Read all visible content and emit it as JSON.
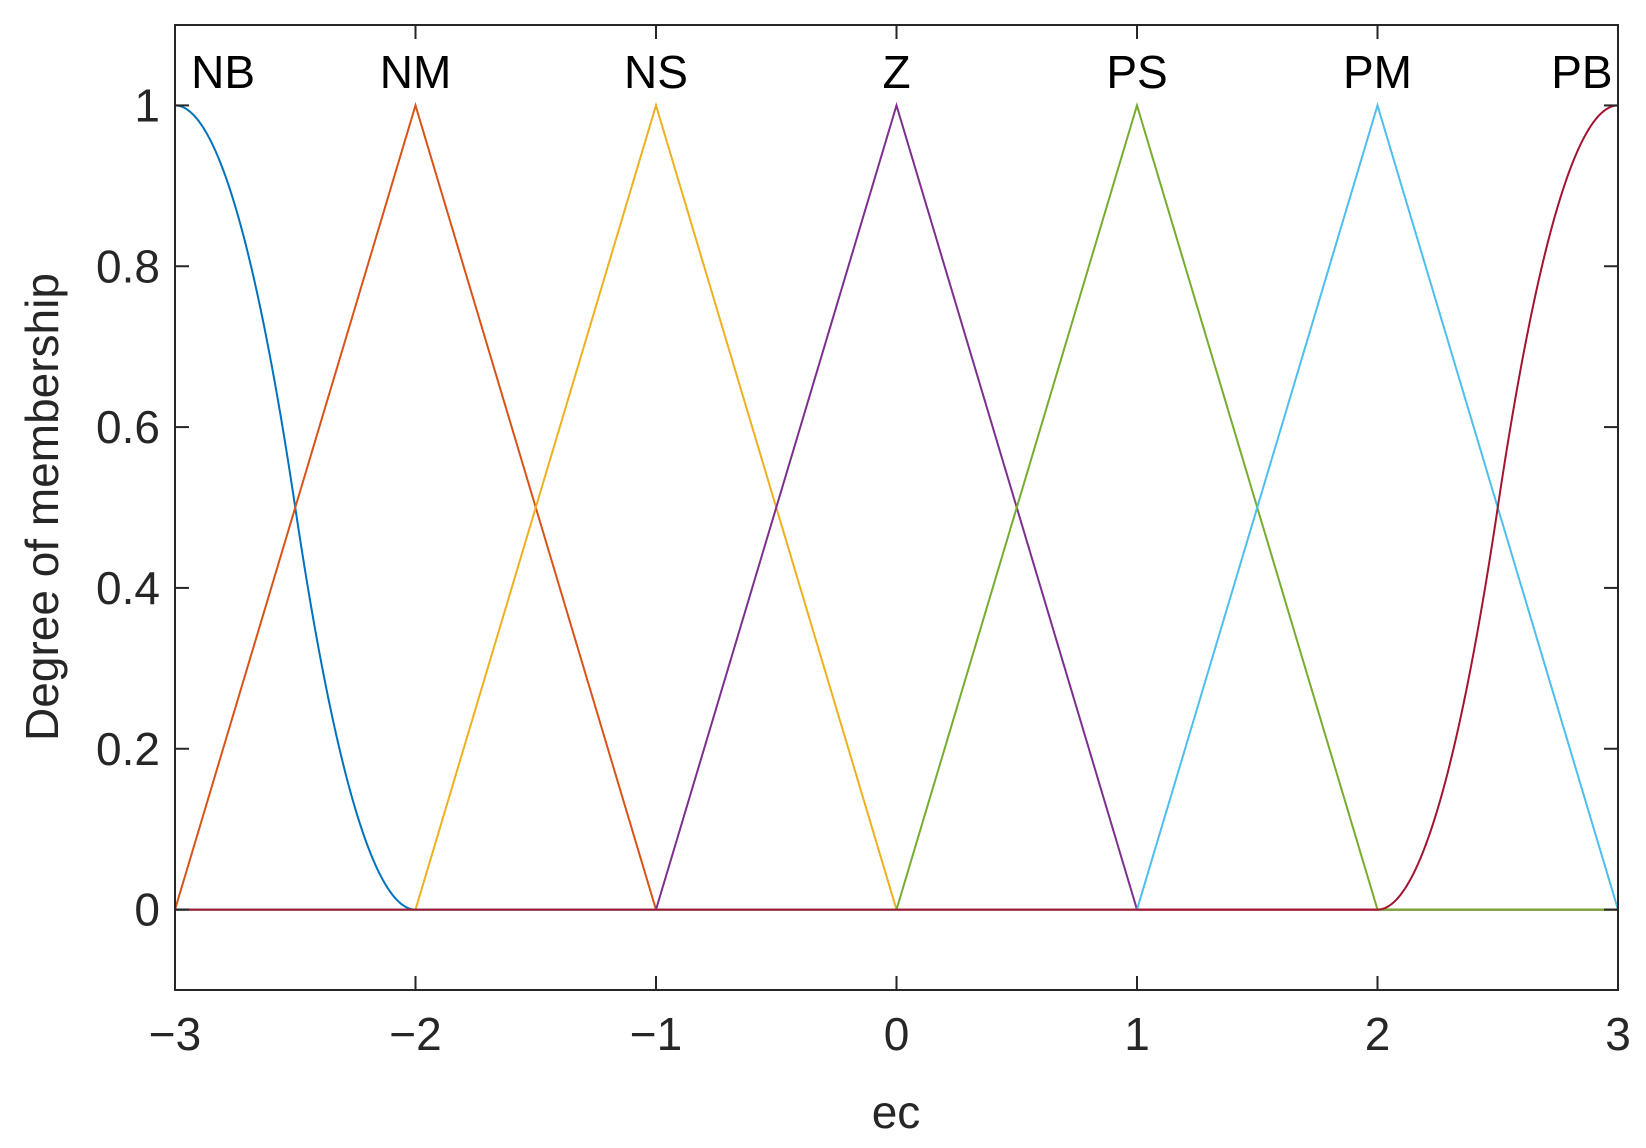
{
  "chart_data": {
    "type": "line",
    "title": "",
    "xlabel": "ec",
    "ylabel": "Degree of membership",
    "xlim": [
      -3,
      3
    ],
    "ylim": [
      -0.1,
      1.1
    ],
    "xticks": [
      -3,
      -2,
      -1,
      0,
      1,
      2,
      3
    ],
    "xtick_labels": [
      "−3",
      "−2",
      "−1",
      "0",
      "1",
      "2",
      "3"
    ],
    "yticks": [
      0,
      0.2,
      0.4,
      0.6,
      0.8,
      1
    ],
    "ytick_labels": [
      "0",
      "0.2",
      "0.4",
      "0.6",
      "0.8",
      "1"
    ],
    "grid": false,
    "series": [
      {
        "name": "NB",
        "shape": "zmf",
        "params": [
          -3,
          -2
        ],
        "color": "#0072BD",
        "label_x": -2.8
      },
      {
        "name": "NM",
        "shape": "trimf",
        "params": [
          -3,
          -2,
          -1
        ],
        "color": "#D95319",
        "label_x": -2
      },
      {
        "name": "NS",
        "shape": "trimf",
        "params": [
          -2,
          -1,
          0
        ],
        "color": "#EDB120",
        "label_x": -1
      },
      {
        "name": "Z",
        "shape": "trimf",
        "params": [
          -1,
          0,
          1
        ],
        "color": "#7E2F8E",
        "label_x": 0
      },
      {
        "name": "PS",
        "shape": "trimf",
        "params": [
          0,
          1,
          2
        ],
        "color": "#77AC30",
        "label_x": 1
      },
      {
        "name": "PM",
        "shape": "trimf",
        "params": [
          1,
          2,
          3
        ],
        "color": "#4DBEEE",
        "label_x": 2
      },
      {
        "name": "PB",
        "shape": "smf",
        "params": [
          2,
          3
        ],
        "color": "#A2142F",
        "label_x": 2.85
      }
    ]
  }
}
